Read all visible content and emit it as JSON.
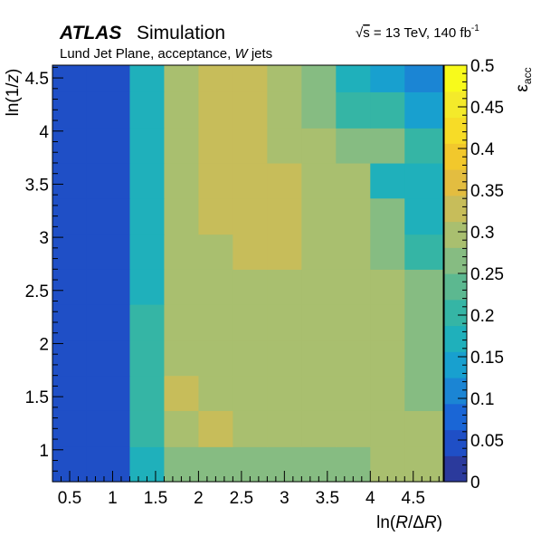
{
  "header": {
    "atlas": "ATLAS",
    "simulation": "Simulation",
    "sqrt": "√",
    "s": "s",
    "energy_rest": " = 13 TeV, 140 fb",
    "energy_sup": "-1",
    "sub_a": "Lund Jet Plane, acceptance, ",
    "sub_w": "W",
    "sub_b": " jets"
  },
  "chart_data": {
    "type": "heatmap",
    "xlabel": "ln(R/ΔR)",
    "ylabel": "ln(1/z)",
    "zlabel": "εacc",
    "xlim": [
      0.3,
      4.85
    ],
    "ylim": [
      0.7,
      4.62
    ],
    "zlim": [
      0,
      0.5
    ],
    "x_ticks": [
      "0.5",
      "1",
      "1.5",
      "2",
      "2.5",
      "3",
      "3.5",
      "4",
      "4.5"
    ],
    "y_ticks": [
      "1",
      "1.5",
      "2",
      "2.5",
      "3",
      "3.5",
      "4",
      "4.5"
    ],
    "z_ticks": [
      "0",
      "0.05",
      "0.1",
      "0.15",
      "0.2",
      "0.25",
      "0.3",
      "0.35",
      "0.4",
      "0.45",
      "0.5"
    ],
    "x_edges": [
      0.3,
      0.7,
      1.2,
      1.6,
      2.0,
      2.4,
      2.8,
      3.2,
      3.6,
      4.0,
      4.4,
      4.85
    ],
    "y_edges": [
      0.7,
      1.03,
      1.37,
      1.7,
      2.03,
      2.37,
      2.7,
      3.03,
      3.37,
      3.7,
      4.03,
      4.37,
      4.62
    ],
    "values": [
      [
        0.04,
        0.06,
        0.17,
        0.28,
        0.26,
        0.26,
        0.26,
        0.26,
        0.26,
        0.29,
        0.29
      ],
      [
        0.04,
        0.06,
        0.19,
        0.31,
        0.32,
        0.3,
        0.3,
        0.3,
        0.3,
        0.3,
        0.29
      ],
      [
        0.04,
        0.06,
        0.19,
        0.32,
        0.3,
        0.3,
        0.3,
        0.3,
        0.3,
        0.3,
        0.28
      ],
      [
        0.04,
        0.06,
        0.19,
        0.31,
        0.31,
        0.31,
        0.31,
        0.31,
        0.31,
        0.3,
        0.28
      ],
      [
        0.04,
        0.06,
        0.19,
        0.31,
        0.31,
        0.31,
        0.31,
        0.31,
        0.31,
        0.3,
        0.26
      ],
      [
        0.04,
        0.06,
        0.17,
        0.31,
        0.31,
        0.31,
        0.31,
        0.31,
        0.31,
        0.3,
        0.27
      ],
      [
        0.04,
        0.06,
        0.17,
        0.31,
        0.31,
        0.34,
        0.34,
        0.31,
        0.31,
        0.27,
        0.19
      ],
      [
        0.04,
        0.06,
        0.17,
        0.31,
        0.34,
        0.34,
        0.34,
        0.31,
        0.31,
        0.25,
        0.17
      ],
      [
        0.04,
        0.06,
        0.17,
        0.31,
        0.34,
        0.34,
        0.34,
        0.31,
        0.31,
        0.18,
        0.17
      ],
      [
        0.04,
        0.06,
        0.17,
        0.31,
        0.34,
        0.34,
        0.31,
        0.3,
        0.25,
        0.25,
        0.19
      ],
      [
        0.04,
        0.06,
        0.17,
        0.31,
        0.34,
        0.34,
        0.31,
        0.27,
        0.21,
        0.21,
        0.15
      ],
      [
        0.04,
        0.06,
        0.17,
        0.31,
        0.34,
        0.32,
        0.3,
        0.27,
        0.17,
        0.14,
        0.12
      ]
    ],
    "palette": [
      "#2b3a9c",
      "#1f4fc6",
      "#1a66d6",
      "#1b85d4",
      "#18a0cf",
      "#1fb0bb",
      "#35b5a5",
      "#5cb890",
      "#86bc82",
      "#a9bf6f",
      "#c7bd5a",
      "#e3bd40",
      "#f2c82c",
      "#f7dc27",
      "#f4ea2a",
      "#f8fa1b"
    ],
    "grid": false,
    "legend": "colorbar-right"
  }
}
